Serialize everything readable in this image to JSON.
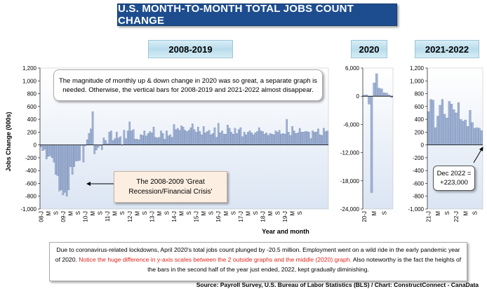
{
  "title": "U.S. MONTH-TO-MONTH TOTAL JOBS COUNT CHANGE",
  "periods": [
    "2008-2019",
    "2020",
    "2021-2022"
  ],
  "y_axis_label": "Jobs Change (000s)",
  "x_axis_label": "Year and month",
  "notes": {
    "top": "The magnitude of monthly up & down change in 2020 was so great, a separate graph is needed. Otherwise, the vertical bars for 2008-2019 and 2021-2022 almost disappear.",
    "recession": "The 2008-2009 'Great Recession/Financial Crisis'",
    "dec2022": "Dec 2022 = +223,000"
  },
  "bottom_note": {
    "part1": "Due to coronavirus-related lockdowns, April 2020's total jobs count plunged by -20.5 million. Employment went on a wild ride in the early pandemic year of 2020. ",
    "part2": "Notice the huge difference in y-axis scales between the 2 outside graphs and the middle (2020) graph.",
    "part3": " Also noteworthy is the fact the heights of the bars in the second half of the year just ended, 2022, kept gradually diminishing."
  },
  "source": "Source: Payroll Survey, U.S. Bureau of Labor Statistics (BLS) / Chart: ConstructConnect - CanaData",
  "colors": {
    "bar": "#9fb3d6",
    "bar_edge": "#5a6e9a",
    "plot_bg_top": "#ffffff",
    "plot_bg_bottom": "#dbe5f3",
    "title_bg": "#1d4d8f",
    "red_text": "#e2231a"
  },
  "chart_data": [
    {
      "type": "bar",
      "panel": "2008-2019",
      "ylim": [
        -1000,
        1200
      ],
      "yticks": [
        -1000,
        -800,
        -600,
        -400,
        -200,
        0,
        200,
        400,
        600,
        800,
        1000,
        1200
      ],
      "ytick_labels": [
        "-1,000",
        "-800",
        "-600",
        "-400",
        "-200",
        "0",
        "200",
        "400",
        "600",
        "800",
        "1,000",
        "1,200"
      ],
      "xtick_labels": [
        "08-J",
        "M",
        "S",
        "09-J",
        "M",
        "S",
        "10-J",
        "M",
        "S",
        "11-J",
        "M",
        "S",
        "12-J",
        "M",
        "S",
        "13-J",
        "M",
        "S",
        "14-J",
        "M",
        "S",
        "15-J",
        "M",
        "S",
        "16-J",
        "M",
        "S",
        "17-J",
        "M",
        "S",
        "18-J",
        "M",
        "S",
        "19-J",
        "M",
        "S"
      ],
      "values": [
        -30,
        -90,
        -70,
        -220,
        -180,
        -170,
        -200,
        -270,
        -460,
        -480,
        -720,
        -700,
        -780,
        -740,
        -800,
        -700,
        -340,
        -460,
        -340,
        -250,
        -250,
        -240,
        -10,
        -270,
        -15,
        80,
        180,
        250,
        520,
        -140,
        -80,
        -40,
        -10,
        -75,
        110,
        70,
        20,
        200,
        220,
        70,
        100,
        200,
        110,
        130,
        0,
        230,
        100,
        220,
        360,
        220,
        240,
        90,
        90,
        80,
        160,
        150,
        220,
        140,
        180,
        210,
        190,
        280,
        120,
        110,
        120,
        220,
        180,
        90,
        220,
        140,
        160,
        120,
        320,
        240,
        260,
        230,
        300,
        280,
        230,
        210,
        230,
        270,
        330,
        240,
        200,
        280,
        210,
        160,
        290,
        190,
        210,
        230,
        160,
        180,
        270,
        120,
        340,
        190,
        220,
        170,
        170,
        310,
        260,
        200,
        170,
        260,
        180,
        240,
        270,
        130,
        200,
        160,
        200,
        220,
        190,
        160,
        190,
        210,
        270,
        220,
        210,
        170,
        190,
        150,
        180,
        170,
        160,
        220,
        200,
        230,
        170,
        180,
        170,
        400,
        200,
        150,
        290,
        220,
        180,
        190,
        260,
        200,
        200,
        210,
        210,
        200,
        100,
        220,
        200,
        200,
        250,
        160,
        150,
        260,
        210,
        220
      ],
      "title": "2008-2019"
    },
    {
      "type": "bar",
      "panel": "2020",
      "ylim": [
        -24000,
        6000
      ],
      "yticks": [
        -24000,
        -18000,
        -12000,
        -6000,
        0,
        6000
      ],
      "ytick_labels": [
        "-24,000",
        "-18,000",
        "-12,000",
        "-6,000",
        "0",
        "6,000"
      ],
      "xtick_labels": [
        "20-J",
        "M",
        "S"
      ],
      "values": [
        210,
        270,
        -1683,
        -20500,
        2830,
        4800,
        1730,
        1580,
        720,
        680,
        260,
        -270
      ],
      "title": "2020"
    },
    {
      "type": "bar",
      "panel": "2021-2022",
      "ylim": [
        -1000,
        1200
      ],
      "yticks": [
        -1000,
        -800,
        -600,
        -400,
        -200,
        0,
        200,
        400,
        600,
        800,
        1000,
        1200
      ],
      "ytick_labels": [
        "-1,000",
        "-800",
        "-600",
        "-400",
        "-200",
        "0",
        "200",
        "400",
        "600",
        "800",
        "1,000",
        "1,200"
      ],
      "xtick_labels": [
        "21-J",
        "M",
        "S",
        "22-J",
        "M",
        "S"
      ],
      "values": [
        520,
        710,
        700,
        270,
        450,
        620,
        710,
        480,
        420,
        680,
        640,
        550,
        500,
        660,
        400,
        370,
        390,
        290,
        540,
        350,
        260,
        270,
        260,
        223
      ],
      "title": "2021-2022"
    }
  ]
}
